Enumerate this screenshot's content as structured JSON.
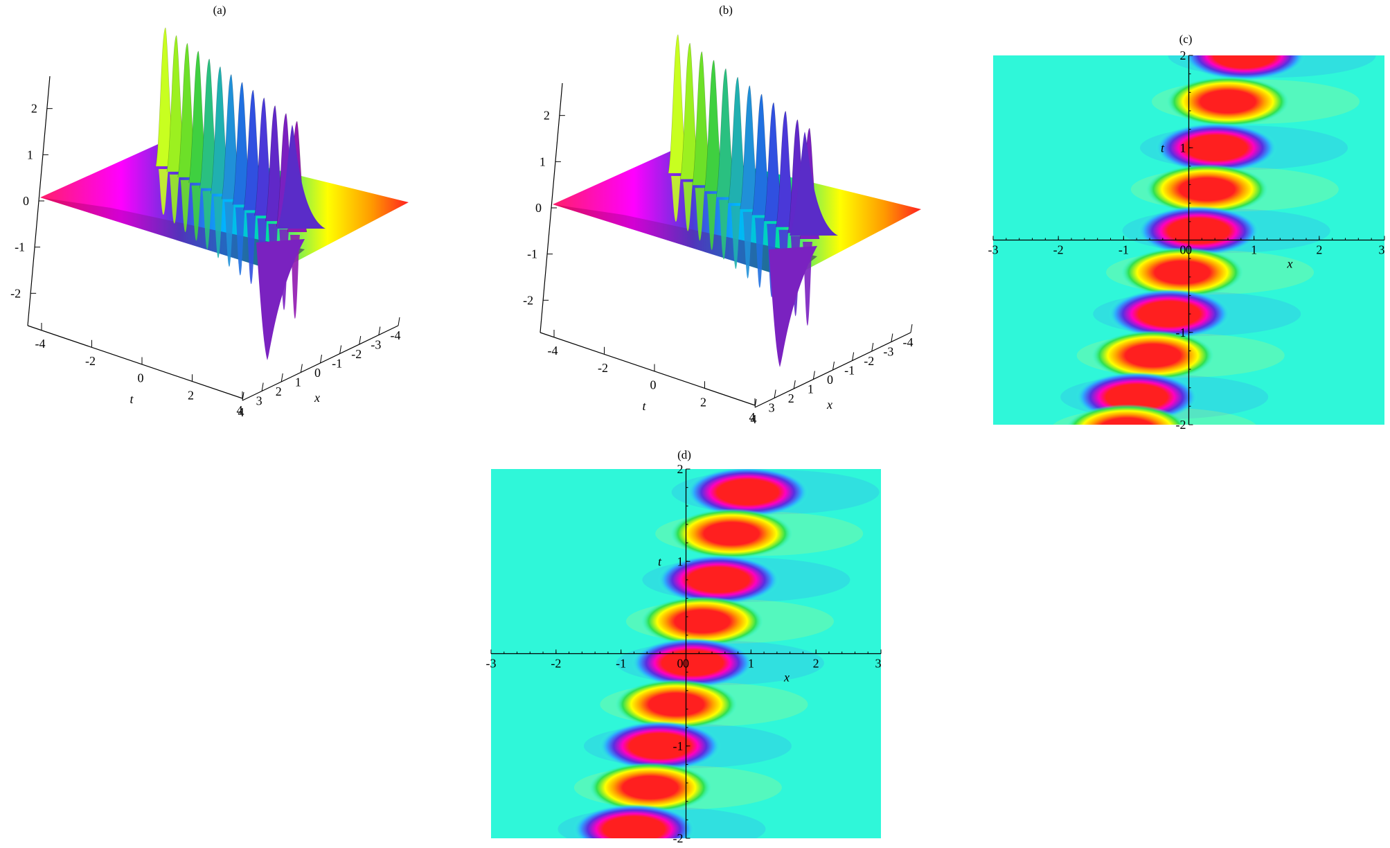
{
  "figure": {
    "panel_labels": [
      "(a)",
      "(b)",
      "(c)",
      "(d)"
    ]
  },
  "colors": {
    "background": "#2ff7d9",
    "axis": "#000000",
    "ramp": [
      "#2ff7d9",
      "#00c8ff",
      "#4b3bd8",
      "#e000e0",
      "#ff1f1f",
      "#ff9a00",
      "#ffff00",
      "#00e000"
    ]
  },
  "chart_data": [
    {
      "panel": "(a)",
      "type": "surface",
      "xlabel": "x",
      "ylabel": "t",
      "zlabel": "",
      "x_ticks": [
        "-4",
        "-3",
        "-2",
        "-1",
        "0",
        "1",
        "2",
        "3",
        "4"
      ],
      "t_ticks": [
        "-4",
        "-2",
        "0",
        "2",
        "4"
      ],
      "z_ticks": [
        "-2",
        "-1",
        "0",
        "1",
        "2"
      ],
      "xlim": [
        -4,
        4
      ],
      "tlim": [
        -4,
        4
      ],
      "zlim": [
        -2.7,
        2.7
      ],
      "peaks": 13,
      "peak_amplitude": 2.6,
      "trough_amplitude": -2.2
    },
    {
      "panel": "(b)",
      "type": "surface",
      "xlabel": "x",
      "ylabel": "t",
      "zlabel": "",
      "x_ticks": [
        "-4",
        "-3",
        "-2",
        "-1",
        "0",
        "1",
        "2",
        "3",
        "4"
      ],
      "t_ticks": [
        "-4",
        "-2",
        "0",
        "2",
        "4"
      ],
      "z_ticks": [
        "-2",
        "-1",
        "0",
        "1",
        "2"
      ],
      "xlim": [
        -4,
        4
      ],
      "tlim": [
        -4,
        4
      ],
      "zlim": [
        -2.7,
        2.7
      ],
      "peaks": 12,
      "peak_amplitude": 2.6,
      "trough_amplitude": -2.2
    },
    {
      "panel": "(c)",
      "type": "heatmap",
      "xlabel": "x",
      "ylabel": "t",
      "x_ticks": [
        "-3",
        "-2",
        "-1",
        "0",
        "1",
        "2",
        "3"
      ],
      "t_ticks": [
        "-2",
        "-1",
        "0",
        "1",
        "2"
      ],
      "xlim": [
        -3,
        3
      ],
      "ylim": [
        -2,
        2
      ],
      "blob_rows": [
        {
          "t": 2.0,
          "x": 0.85,
          "kind": "red"
        },
        {
          "t": 1.5,
          "x": 0.6,
          "kind": "red"
        },
        {
          "t": 1.0,
          "x": 0.42,
          "kind": "red"
        },
        {
          "t": 0.55,
          "x": 0.28,
          "kind": "red"
        },
        {
          "t": 0.1,
          "x": 0.15,
          "kind": "red"
        },
        {
          "t": -0.35,
          "x": -0.1,
          "kind": "red"
        },
        {
          "t": -0.8,
          "x": -0.3,
          "kind": "red"
        },
        {
          "t": -1.25,
          "x": -0.55,
          "kind": "red"
        },
        {
          "t": -1.7,
          "x": -0.8,
          "kind": "red"
        },
        {
          "t": -2.05,
          "x": -0.95,
          "kind": "red"
        }
      ]
    },
    {
      "panel": "(d)",
      "type": "heatmap",
      "xlabel": "x",
      "ylabel": "t",
      "x_ticks": [
        "-3",
        "-2",
        "-1",
        "0",
        "1",
        "2",
        "3"
      ],
      "t_ticks": [
        "-2",
        "-1",
        "0",
        "1",
        "2"
      ],
      "xlim": [
        -3,
        3
      ],
      "ylim": [
        -2,
        2
      ],
      "blob_rows": [
        {
          "t": 1.75,
          "x": 0.95,
          "kind": "red"
        },
        {
          "t": 1.3,
          "x": 0.7,
          "kind": "red"
        },
        {
          "t": 0.8,
          "x": 0.5,
          "kind": "red"
        },
        {
          "t": 0.35,
          "x": 0.25,
          "kind": "red"
        },
        {
          "t": -0.1,
          "x": 0.1,
          "kind": "red"
        },
        {
          "t": -0.55,
          "x": -0.15,
          "kind": "red"
        },
        {
          "t": -1.0,
          "x": -0.4,
          "kind": "red"
        },
        {
          "t": -1.45,
          "x": -0.55,
          "kind": "red"
        },
        {
          "t": -1.9,
          "x": -0.8,
          "kind": "red"
        }
      ]
    }
  ]
}
